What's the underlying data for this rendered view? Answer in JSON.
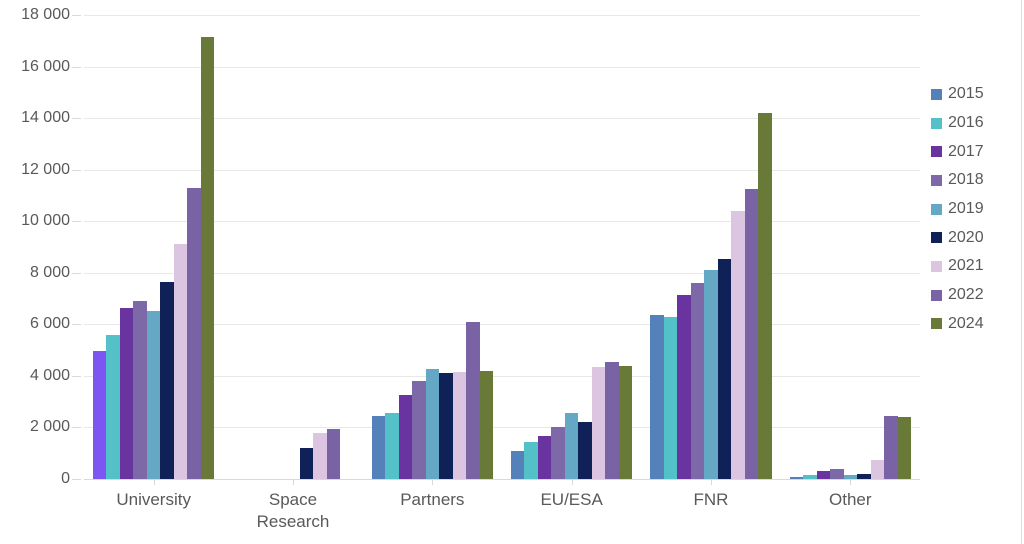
{
  "chart_data": {
    "type": "bar",
    "title": "",
    "xlabel": "",
    "ylabel": "",
    "ylim": [
      0,
      18000
    ],
    "grid": true,
    "legend_position": "right",
    "categories": [
      "University",
      "Space Research",
      "Partners",
      "EU/ESA",
      "FNR",
      "Other"
    ],
    "series": [
      {
        "name": "2015",
        "color": "#5581bb",
        "values": [
          4950,
          0,
          2450,
          1100,
          6350,
          60
        ]
      },
      {
        "name": "2016",
        "color": "#54c0c8",
        "values": [
          5600,
          0,
          2550,
          1450,
          6300,
          150
        ]
      },
      {
        "name": "2017",
        "color": "#6933a0",
        "values": [
          6650,
          0,
          3250,
          1650,
          7150,
          300
        ]
      },
      {
        "name": "2018",
        "color": "#7d68a8",
        "values": [
          6900,
          0,
          3800,
          2000,
          7600,
          400
        ]
      },
      {
        "name": "2019",
        "color": "#64a8c6",
        "values": [
          6500,
          0,
          4250,
          2550,
          8100,
          160
        ]
      },
      {
        "name": "2020",
        "color": "#102158",
        "values": [
          7650,
          1200,
          4100,
          2200,
          8550,
          200
        ]
      },
      {
        "name": "2021",
        "color": "#dcc5e0",
        "values": [
          9100,
          1800,
          4150,
          4350,
          10400,
          750
        ]
      },
      {
        "name": "2022",
        "color": "#7a63a5",
        "values": [
          11300,
          1950,
          6100,
          4550,
          11250,
          2450
        ]
      },
      {
        "name": "2024",
        "color": "#697a38",
        "values": [
          17150,
          0,
          4200,
          4400,
          14200,
          2400
        ]
      }
    ],
    "highlight": {
      "category": "University",
      "series": "2015",
      "color": "#7c55f2"
    },
    "yticks": [
      {
        "value": 0,
        "label": "0"
      },
      {
        "value": 2000,
        "label": "2 000"
      },
      {
        "value": 4000,
        "label": "4 000"
      },
      {
        "value": 6000,
        "label": "6 000"
      },
      {
        "value": 8000,
        "label": "8 000"
      },
      {
        "value": 10000,
        "label": "10 000"
      },
      {
        "value": 12000,
        "label": "12 000"
      },
      {
        "value": 14000,
        "label": "14 000"
      },
      {
        "value": 16000,
        "label": "16 000"
      },
      {
        "value": 18000,
        "label": "18 000"
      }
    ]
  },
  "colors": {
    "axis_text": "#595959",
    "gridline": "#e8e8e8",
    "baseline": "#d9d9d9",
    "background": "#ffffff"
  }
}
